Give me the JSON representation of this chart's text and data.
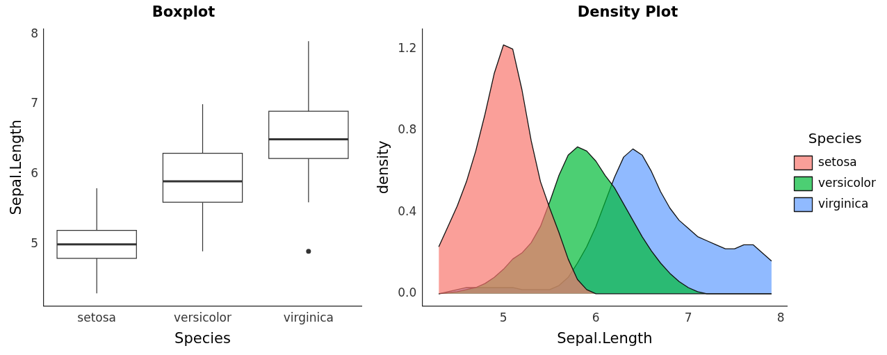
{
  "chart_data": [
    {
      "type": "box",
      "title": "Boxplot",
      "xlabel": "Species",
      "ylabel": "Sepal.Length",
      "categories": [
        "setosa",
        "versicolor",
        "virginica"
      ],
      "boxes": [
        {
          "low": 4.3,
          "q1": 4.8,
          "median": 5.0,
          "q3": 5.2,
          "high": 5.8
        },
        {
          "low": 4.9,
          "q1": 5.6,
          "median": 5.9,
          "q3": 6.3,
          "high": 7.0
        },
        {
          "low": 5.6,
          "q1": 6.225,
          "median": 6.5,
          "q3": 6.9,
          "high": 7.9,
          "outliers": [
            4.9
          ]
        }
      ],
      "ylim": [
        4.12,
        8.08
      ],
      "yticks": [
        5,
        6,
        7,
        8
      ],
      "grid": false
    },
    {
      "type": "area",
      "title": "Density Plot",
      "xlabel": "Sepal.Length",
      "ylabel": "density",
      "legend_title": "Species",
      "legend": "right",
      "grid": false,
      "x": [
        4.3,
        4.4,
        4.5,
        4.6,
        4.7,
        4.8,
        4.9,
        5.0,
        5.1,
        5.2,
        5.3,
        5.4,
        5.5,
        5.6,
        5.7,
        5.8,
        5.9,
        6.0,
        6.1,
        6.2,
        6.3,
        6.4,
        6.5,
        6.6,
        6.7,
        6.8,
        6.9,
        7.0,
        7.1,
        7.2,
        7.3,
        7.4,
        7.5,
        7.6,
        7.7,
        7.8,
        7.9
      ],
      "series": [
        {
          "name": "setosa",
          "color": "#f8766d",
          "values": [
            0.23,
            0.33,
            0.43,
            0.55,
            0.7,
            0.88,
            1.08,
            1.22,
            1.2,
            1.0,
            0.75,
            0.55,
            0.42,
            0.3,
            0.17,
            0.07,
            0.02,
            0,
            0,
            0,
            0,
            0,
            0,
            0,
            0,
            0,
            0,
            0,
            0,
            0,
            0,
            0,
            0,
            0,
            0,
            0,
            0
          ]
        },
        {
          "name": "versicolor",
          "color": "#00ba38",
          "values": [
            0,
            0.005,
            0.01,
            0.02,
            0.03,
            0.05,
            0.08,
            0.12,
            0.17,
            0.2,
            0.25,
            0.33,
            0.45,
            0.58,
            0.68,
            0.72,
            0.7,
            0.65,
            0.58,
            0.52,
            0.44,
            0.36,
            0.28,
            0.21,
            0.15,
            0.1,
            0.06,
            0.03,
            0.01,
            0,
            0,
            0,
            0,
            0,
            0,
            0,
            0
          ]
        },
        {
          "name": "virginica",
          "color": "#619cff",
          "values": [
            0,
            0.01,
            0.02,
            0.03,
            0.03,
            0.03,
            0.03,
            0.03,
            0.03,
            0.02,
            0.02,
            0.02,
            0.02,
            0.04,
            0.08,
            0.15,
            0.23,
            0.33,
            0.45,
            0.57,
            0.67,
            0.71,
            0.68,
            0.6,
            0.5,
            0.42,
            0.36,
            0.32,
            0.28,
            0.26,
            0.24,
            0.22,
            0.22,
            0.24,
            0.24,
            0.2,
            0.16
          ]
        }
      ],
      "xlim": [
        4.12,
        8.07
      ],
      "xticks": [
        5,
        6,
        7,
        8
      ],
      "ylim": [
        -0.06,
        1.3
      ],
      "yticks": [
        {
          "value": 0,
          "label": "0.0"
        },
        0.4,
        0.8,
        1.2
      ]
    }
  ]
}
